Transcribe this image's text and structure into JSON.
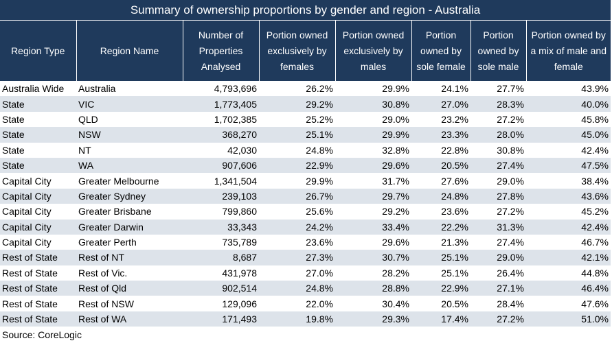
{
  "chart_data": {
    "type": "table",
    "title": "Summary of ownership proportions by gender and region - Australia",
    "columns": [
      "Region Type",
      "Region Name",
      "Number of Properties Analysed",
      "Portion owned exclusively by females",
      "Portion owned exclusively by males",
      "Portion owned by sole female",
      "Portion owned by sole male",
      "Portion owned by a mix of male and female"
    ],
    "rows": [
      [
        "Australia Wide",
        "Australia",
        "4,793,696",
        "26.2%",
        "29.9%",
        "24.1%",
        "27.7%",
        "43.9%"
      ],
      [
        "State",
        "VIC",
        "1,773,405",
        "29.2%",
        "30.8%",
        "27.0%",
        "28.3%",
        "40.0%"
      ],
      [
        "State",
        "QLD",
        "1,702,385",
        "25.2%",
        "29.0%",
        "23.2%",
        "27.2%",
        "45.8%"
      ],
      [
        "State",
        "NSW",
        "368,270",
        "25.1%",
        "29.9%",
        "23.3%",
        "28.0%",
        "45.0%"
      ],
      [
        "State",
        "NT",
        "42,030",
        "24.8%",
        "32.8%",
        "22.8%",
        "30.8%",
        "42.4%"
      ],
      [
        "State",
        "WA",
        "907,606",
        "22.9%",
        "29.6%",
        "20.5%",
        "27.4%",
        "47.5%"
      ],
      [
        "Capital City",
        "Greater Melbourne",
        "1,341,504",
        "29.9%",
        "31.7%",
        "27.6%",
        "29.0%",
        "38.4%"
      ],
      [
        "Capital City",
        "Greater Sydney",
        "239,103",
        "26.7%",
        "29.7%",
        "24.8%",
        "27.8%",
        "43.6%"
      ],
      [
        "Capital City",
        "Greater Brisbane",
        "799,860",
        "25.6%",
        "29.2%",
        "23.6%",
        "27.2%",
        "45.2%"
      ],
      [
        "Capital City",
        "Greater Darwin",
        "33,343",
        "24.2%",
        "33.4%",
        "22.2%",
        "31.3%",
        "42.4%"
      ],
      [
        "Capital City",
        "Greater Perth",
        "735,789",
        "23.6%",
        "29.6%",
        "21.3%",
        "27.4%",
        "46.7%"
      ],
      [
        "Rest of State",
        "Rest of NT",
        "8,687",
        "27.3%",
        "30.7%",
        "25.1%",
        "29.0%",
        "42.1%"
      ],
      [
        "Rest of State",
        "Rest of Vic.",
        "431,978",
        "27.0%",
        "28.2%",
        "25.1%",
        "26.4%",
        "44.8%"
      ],
      [
        "Rest of State",
        "Rest of Qld",
        "902,514",
        "24.8%",
        "28.8%",
        "22.9%",
        "27.1%",
        "46.4%"
      ],
      [
        "Rest of State",
        "Rest of NSW",
        "129,096",
        "22.0%",
        "30.4%",
        "20.5%",
        "28.4%",
        "47.6%"
      ],
      [
        "Rest of State",
        "Rest of WA",
        "171,493",
        "19.8%",
        "29.3%",
        "17.4%",
        "27.2%",
        "51.0%"
      ]
    ],
    "source": "Source: CoreLogic"
  },
  "colors": {
    "header_bg": "#1f3a5c",
    "header_text": "#ffffff",
    "row_alt": "#dde3ea",
    "row": "#ffffff"
  }
}
